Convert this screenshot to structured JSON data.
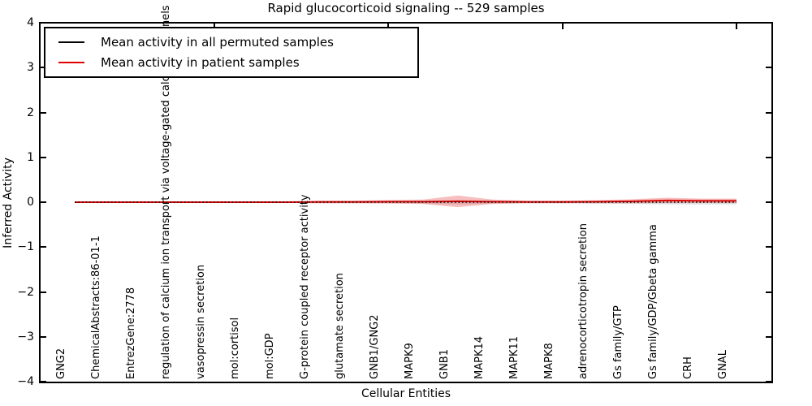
{
  "title": "Rapid glucocorticoid signaling -- 529 samples",
  "axes": {
    "xlabel": "Cellular Entities",
    "ylabel": "Inferred Activity",
    "yticks": [
      "4",
      "3",
      "2",
      "1",
      "0",
      "−1",
      "−2",
      "−3",
      "−4"
    ]
  },
  "legend": {
    "items": [
      {
        "label": "Mean activity in all permuted samples",
        "color": "#000000"
      },
      {
        "label": "Mean activity in patient samples",
        "color": "#e00000"
      }
    ]
  },
  "chart_data": {
    "type": "line",
    "title": "Rapid glucocorticoid signaling -- 529 samples",
    "xlabel": "Cellular Entities",
    "ylabel": "Inferred Activity",
    "ylim": [
      -4,
      4
    ],
    "grid": false,
    "legend_position": "upper left",
    "tick_label_rotation": 90,
    "x_major_tick_every": 5,
    "categories": [
      "GNG2",
      "ChemicalAbstracts:86-01-1",
      "EntrezGene:2778",
      "regulation of calcium ion transport via voltage-gated calcium channels",
      "vasopressin secretion",
      "mol:cortisol",
      "mol:GDP",
      "G-protein coupled receptor activity",
      "glutamate secretion",
      "GNB1/GNG2",
      "MAPK9",
      "GNB1",
      "MAPK14",
      "MAPK11",
      "MAPK8",
      "adrenocorticotropin secretion",
      "Gs family/GTP",
      "Gs family/GDP/Gbeta gamma",
      "CRH",
      "GNAL"
    ],
    "series": [
      {
        "name": "Mean activity in all permuted samples",
        "color": "#000000",
        "line_style": "dotted",
        "values": [
          0,
          0,
          0,
          0,
          0,
          0,
          0,
          0,
          0,
          0,
          0,
          0,
          0,
          0,
          0,
          0,
          0,
          0,
          0,
          0
        ],
        "std": [
          0.004,
          0.004,
          0.004,
          0.005,
          0.006,
          0.008,
          0.01,
          0.02,
          0.02,
          0.02,
          0.03,
          0.05,
          0.03,
          0.02,
          0.02,
          0.03,
          0.04,
          0.05,
          0.05,
          0.05
        ],
        "band_color": "#aaaaaa",
        "band_opacity": 0.35
      },
      {
        "name": "Mean activity in patient samples",
        "color": "#e00000",
        "line_style": "solid",
        "values": [
          0,
          0,
          0,
          0,
          0,
          0,
          0,
          0.005,
          0.005,
          0.01,
          0.01,
          0.02,
          0.01,
          0.005,
          0.005,
          0.01,
          0.02,
          0.04,
          0.03,
          0.03
        ],
        "std": [
          0.005,
          0.005,
          0.005,
          0.008,
          0.01,
          0.012,
          0.015,
          0.03,
          0.03,
          0.04,
          0.05,
          0.13,
          0.05,
          0.03,
          0.03,
          0.035,
          0.045,
          0.06,
          0.05,
          0.05
        ],
        "band_color": "#e00000",
        "band_opacity": 0.25
      }
    ]
  }
}
